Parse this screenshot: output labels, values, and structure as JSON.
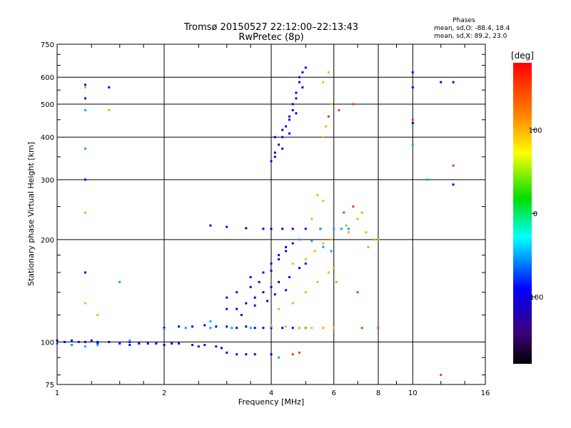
{
  "chart_data": {
    "type": "scatter",
    "title": "Tromsø 20150527 22:12:00–22:13:43",
    "subtitle": "RwPretec (8p)",
    "xlabel": "Frequency [MHz]",
    "ylabel": "Stationary phase Virtual Height [km]",
    "x_scale": "log2",
    "y_scale": "log",
    "xlim": [
      1,
      16
    ],
    "ylim": [
      75,
      750
    ],
    "x_ticks": [
      1,
      2,
      4,
      6,
      8,
      10,
      16
    ],
    "x_tick_labels": [
      "1",
      "2",
      "4",
      "6",
      "8",
      "10",
      "16"
    ],
    "y_ticks": [
      75,
      100,
      200,
      300,
      400,
      500,
      600,
      750
    ],
    "y_tick_labels": [
      "75",
      "100",
      "200",
      "300",
      "400",
      "500",
      "600",
      "750"
    ],
    "x_minor_ticks": [
      1.25,
      1.5,
      1.75,
      2.5,
      3,
      3.5,
      5,
      7,
      9,
      12,
      14
    ],
    "y_minor_ticks": [
      80,
      90,
      120,
      140,
      160,
      180,
      250,
      350,
      450,
      550,
      650,
      700
    ],
    "grid": true,
    "phase_stats": {
      "title": "Phases",
      "line_o": "mean, sd,O: -88.4, 18.4",
      "line_x": "mean, sd,X:  89.2, 23.0"
    },
    "colorbar": {
      "label": "[deg]",
      "range": [
        -180,
        180
      ],
      "ticks": [
        100,
        0,
        -100
      ],
      "tick_labels": [
        "100",
        "0",
        "-100"
      ]
    },
    "series": [
      {
        "phase": -95,
        "points": [
          [
            1.0,
            101
          ],
          [
            1.05,
            100
          ],
          [
            1.1,
            101
          ],
          [
            1.15,
            100
          ],
          [
            1.2,
            100
          ],
          [
            1.25,
            101
          ],
          [
            1.3,
            100
          ],
          [
            1.4,
            100
          ],
          [
            1.5,
            99
          ],
          [
            1.6,
            100
          ],
          [
            1.7,
            99
          ],
          [
            1.8,
            99
          ],
          [
            1.9,
            99
          ],
          [
            2.0,
            98
          ],
          [
            2.1,
            99
          ],
          [
            2.2,
            99
          ],
          [
            2.4,
            98
          ],
          [
            2.6,
            98
          ],
          [
            2.8,
            97
          ],
          [
            3.0,
            93
          ],
          [
            3.2,
            92
          ],
          [
            3.4,
            92
          ],
          [
            3.6,
            92
          ],
          [
            4.0,
            92
          ],
          [
            2.0,
            110
          ],
          [
            2.2,
            111
          ],
          [
            2.4,
            111
          ],
          [
            2.6,
            112
          ],
          [
            2.8,
            111
          ],
          [
            3.0,
            111
          ],
          [
            3.2,
            110
          ],
          [
            3.4,
            111
          ],
          [
            3.6,
            110
          ],
          [
            3.8,
            110
          ],
          [
            4.0,
            110
          ],
          [
            4.3,
            110
          ],
          [
            4.6,
            110
          ],
          [
            5.0,
            110
          ],
          [
            3.2,
            125
          ],
          [
            3.4,
            130
          ],
          [
            3.6,
            135
          ],
          [
            3.8,
            140
          ],
          [
            4.0,
            145
          ],
          [
            4.2,
            150
          ],
          [
            4.5,
            155
          ],
          [
            4.8,
            165
          ],
          [
            5.0,
            170
          ],
          [
            3.0,
            135
          ],
          [
            3.2,
            140
          ],
          [
            3.5,
            145
          ],
          [
            3.8,
            160
          ],
          [
            4.0,
            170
          ],
          [
            4.2,
            180
          ],
          [
            4.4,
            190
          ],
          [
            4.0,
            215
          ],
          [
            4.3,
            215
          ],
          [
            4.6,
            215
          ],
          [
            5.0,
            215
          ],
          [
            5.5,
            215
          ],
          [
            2.7,
            220
          ],
          [
            3.0,
            218
          ],
          [
            3.4,
            216
          ],
          [
            3.8,
            215
          ],
          [
            4.0,
            340
          ],
          [
            4.1,
            360
          ],
          [
            4.2,
            380
          ],
          [
            4.3,
            400
          ],
          [
            4.4,
            430
          ],
          [
            4.5,
            460
          ],
          [
            4.6,
            500
          ],
          [
            4.7,
            540
          ],
          [
            4.8,
            580
          ],
          [
            4.9,
            620
          ],
          [
            5.0,
            640
          ],
          [
            4.1,
            350
          ],
          [
            4.3,
            370
          ],
          [
            4.5,
            410
          ],
          [
            4.7,
            470
          ],
          [
            4.9,
            560
          ],
          [
            1.2,
            570
          ],
          [
            1.2,
            520
          ],
          [
            1.4,
            560
          ],
          [
            1.2,
            300
          ],
          [
            1.2,
            160
          ],
          [
            10.0,
            620
          ],
          [
            10.0,
            560
          ],
          [
            10.0,
            440
          ],
          [
            12.0,
            580
          ],
          [
            13.0,
            580
          ],
          [
            13.0,
            290
          ]
        ]
      },
      {
        "phase": -110,
        "points": [
          [
            3.0,
            125
          ],
          [
            3.3,
            120
          ],
          [
            3.6,
            128
          ],
          [
            3.9,
            132
          ],
          [
            4.1,
            138
          ],
          [
            4.4,
            142
          ],
          [
            3.5,
            155
          ],
          [
            3.7,
            150
          ],
          [
            4.0,
            162
          ],
          [
            4.2,
            175
          ],
          [
            4.4,
            185
          ],
          [
            4.6,
            195
          ],
          [
            4.1,
            400
          ],
          [
            4.3,
            420
          ],
          [
            4.5,
            450
          ],
          [
            4.6,
            480
          ],
          [
            4.7,
            520
          ],
          [
            4.8,
            600
          ],
          [
            1.1,
            98
          ],
          [
            1.3,
            99
          ],
          [
            1.6,
            98
          ],
          [
            2.5,
            97
          ],
          [
            2.9,
            96
          ]
        ]
      },
      {
        "phase": -50,
        "points": [
          [
            1.0,
            99
          ],
          [
            1.1,
            98
          ],
          [
            1.2,
            97
          ],
          [
            1.3,
            98
          ],
          [
            1.6,
            101
          ],
          [
            2.0,
            109
          ],
          [
            2.3,
            110
          ],
          [
            2.7,
            110
          ],
          [
            3.1,
            110
          ],
          [
            3.5,
            110
          ],
          [
            4.0,
            111
          ],
          [
            2.7,
            115
          ],
          [
            5.5,
            215
          ],
          [
            6.0,
            215
          ],
          [
            6.3,
            215
          ],
          [
            6.6,
            215
          ],
          [
            4.8,
            200
          ],
          [
            5.2,
            198
          ],
          [
            5.6,
            190
          ],
          [
            5.9,
            185
          ],
          [
            4.2,
            90
          ],
          [
            1.2,
            480
          ],
          [
            1.2,
            370
          ],
          [
            1.5,
            150
          ],
          [
            10.0,
            380
          ],
          [
            11.0,
            300
          ]
        ]
      },
      {
        "phase": 100,
        "points": [
          [
            4.0,
            112
          ],
          [
            4.4,
            111
          ],
          [
            4.8,
            110
          ],
          [
            5.2,
            110
          ],
          [
            5.6,
            110
          ],
          [
            6.0,
            110
          ],
          [
            4.2,
            125
          ],
          [
            4.6,
            130
          ],
          [
            5.0,
            140
          ],
          [
            5.4,
            150
          ],
          [
            5.8,
            160
          ],
          [
            6.0,
            165
          ],
          [
            4.6,
            170
          ],
          [
            5.0,
            175
          ],
          [
            5.3,
            185
          ],
          [
            5.6,
            195
          ],
          [
            5.9,
            200
          ],
          [
            5.2,
            230
          ],
          [
            5.6,
            260
          ],
          [
            5.4,
            270
          ],
          [
            5.6,
            400
          ],
          [
            5.7,
            430
          ],
          [
            5.8,
            460
          ],
          [
            5.9,
            500
          ],
          [
            5.6,
            580
          ],
          [
            5.8,
            620
          ],
          [
            1.2,
            560
          ],
          [
            1.4,
            480
          ],
          [
            1.2,
            240
          ],
          [
            1.2,
            130
          ],
          [
            1.3,
            120
          ],
          [
            7.0,
            230
          ],
          [
            6.6,
            210
          ],
          [
            7.4,
            210
          ],
          [
            7.8,
            200
          ]
        ]
      },
      {
        "phase": 40,
        "points": [
          [
            6.5,
            220
          ],
          [
            7.2,
            240
          ],
          [
            8.0,
            200
          ],
          [
            7.5,
            190
          ],
          [
            6.1,
            150
          ],
          [
            5.0,
            110
          ]
        ]
      },
      {
        "phase": 150,
        "points": [
          [
            4.6,
            92
          ],
          [
            4.8,
            93
          ],
          [
            6.8,
            250
          ],
          [
            6.4,
            240
          ],
          [
            7.2,
            110
          ],
          [
            5.8,
            460
          ],
          [
            6.2,
            480
          ],
          [
            6.8,
            500
          ],
          [
            7.0,
            140
          ],
          [
            8.0,
            110
          ],
          [
            10.0,
            450
          ],
          [
            12.0,
            80
          ],
          [
            13.0,
            330
          ]
        ]
      }
    ]
  }
}
